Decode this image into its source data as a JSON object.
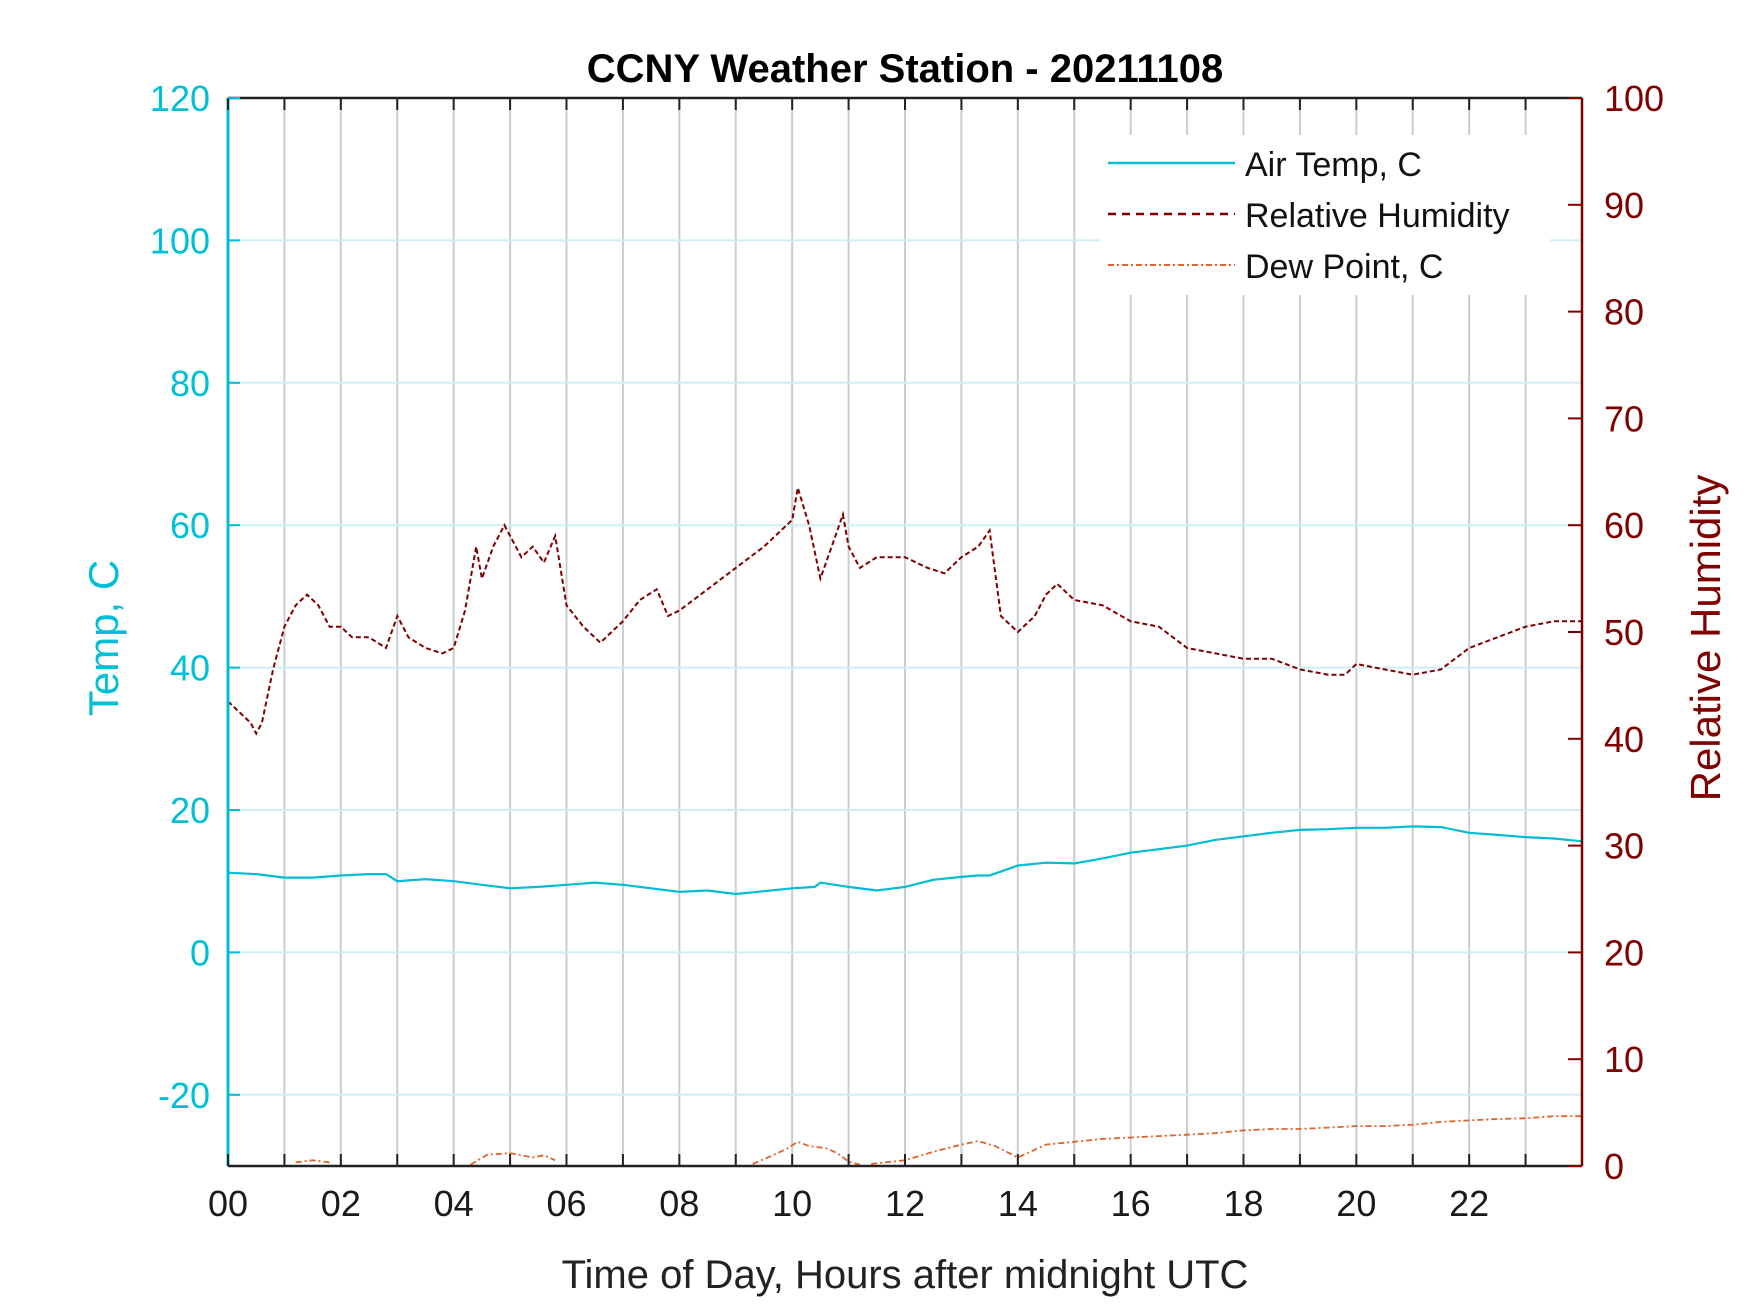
{
  "chart_data": {
    "type": "line",
    "title": "CCNY Weather Station - 20211108",
    "xlabel": "Time of Day, Hours after midnight UTC",
    "ylabel_left": "Temp, C",
    "ylabel_right": "Relative Humidity",
    "xlim": [
      0,
      24
    ],
    "ylim_left": [
      -30,
      120
    ],
    "ylim_right": [
      0,
      100
    ],
    "x_ticks": [
      0,
      2,
      4,
      6,
      8,
      10,
      12,
      14,
      16,
      18,
      20,
      22
    ],
    "x_tick_labels": [
      "00",
      "02",
      "04",
      "06",
      "08",
      "10",
      "12",
      "14",
      "16",
      "18",
      "20",
      "22"
    ],
    "y_left_ticks": [
      -20,
      0,
      20,
      40,
      60,
      80,
      100,
      120
    ],
    "y_left_tick_labels": [
      "-20",
      "0",
      "20",
      "40",
      "60",
      "80",
      "100",
      "120"
    ],
    "y_right_ticks": [
      0,
      10,
      20,
      30,
      40,
      50,
      60,
      70,
      80,
      90,
      100
    ],
    "y_right_tick_labels": [
      "0",
      "10",
      "20",
      "30",
      "40",
      "50",
      "60",
      "70",
      "80",
      "90",
      "100"
    ],
    "grid": true,
    "legend_position": "top-right",
    "colors": {
      "temp": "#00bcd4",
      "rh": "#800000",
      "dew": "#e0622a",
      "grid_v": "#c8cdd2",
      "grid_h": "#cfeef3"
    },
    "series": [
      {
        "name": "Air Temp, C",
        "axis": "left",
        "style": "solid",
        "x": [
          0,
          0.5,
          1.0,
          1.5,
          2.0,
          2.5,
          2.8,
          3.0,
          3.5,
          4.0,
          4.5,
          5.0,
          5.5,
          6.0,
          6.5,
          7.0,
          7.5,
          8.0,
          8.5,
          9.0,
          9.5,
          10.0,
          10.4,
          10.5,
          11.0,
          11.5,
          12.0,
          12.5,
          13.0,
          13.3,
          13.5,
          14.0,
          14.5,
          15.0,
          15.5,
          16.0,
          16.5,
          17.0,
          17.5,
          18.0,
          18.5,
          19.0,
          19.5,
          20.0,
          20.5,
          21.0,
          21.5,
          22.0,
          22.5,
          23.0,
          23.5,
          24.0
        ],
        "values": [
          11.2,
          11.0,
          10.5,
          10.5,
          10.8,
          11.0,
          11.0,
          10.0,
          10.3,
          10.0,
          9.5,
          9.0,
          9.2,
          9.5,
          9.8,
          9.5,
          9.0,
          8.5,
          8.7,
          8.2,
          8.6,
          9.0,
          9.2,
          9.8,
          9.2,
          8.7,
          9.2,
          10.2,
          10.6,
          10.8,
          10.8,
          12.2,
          12.6,
          12.5,
          13.2,
          14.0,
          14.5,
          15.0,
          15.8,
          16.3,
          16.8,
          17.2,
          17.3,
          17.5,
          17.5,
          17.7,
          17.6,
          16.8,
          16.5,
          16.2,
          16.0,
          15.6
        ]
      },
      {
        "name": "Relative Humidity",
        "axis": "right",
        "style": "dashed",
        "x": [
          0,
          0.2,
          0.4,
          0.5,
          0.6,
          0.8,
          1.0,
          1.2,
          1.4,
          1.6,
          1.8,
          2.0,
          2.2,
          2.5,
          2.8,
          3.0,
          3.2,
          3.5,
          3.8,
          4.0,
          4.2,
          4.4,
          4.5,
          4.7,
          4.9,
          5.0,
          5.2,
          5.4,
          5.6,
          5.8,
          6.0,
          6.3,
          6.6,
          6.8,
          7.0,
          7.3,
          7.6,
          7.8,
          8.0,
          8.5,
          9.0,
          9.5,
          10.0,
          10.1,
          10.3,
          10.5,
          10.7,
          10.9,
          11.0,
          11.2,
          11.5,
          12.0,
          12.4,
          12.7,
          13.0,
          13.3,
          13.5,
          13.7,
          14.0,
          14.3,
          14.5,
          14.7,
          15.0,
          15.5,
          16.0,
          16.5,
          17.0,
          17.5,
          18.0,
          18.5,
          19.0,
          19.5,
          19.8,
          20.0,
          20.5,
          21.0,
          21.5,
          22.0,
          22.5,
          23.0,
          23.5,
          24.0
        ],
        "values": [
          43.5,
          42.5,
          41.5,
          40.5,
          41.5,
          46.5,
          50.5,
          52.5,
          53.5,
          52.5,
          50.5,
          50.5,
          49.5,
          49.5,
          48.5,
          51.5,
          49.5,
          48.5,
          48.0,
          48.5,
          52.0,
          58.0,
          55.0,
          58.0,
          60.0,
          59.0,
          57.0,
          58.0,
          56.5,
          59.0,
          52.5,
          50.5,
          49.0,
          50.0,
          51.0,
          53.0,
          54.0,
          51.5,
          52.0,
          54.0,
          56.0,
          58.0,
          60.5,
          63.5,
          60.0,
          55.0,
          58.0,
          61.0,
          58.0,
          56.0,
          57.0,
          57.0,
          56.0,
          55.5,
          57.0,
          58.0,
          59.5,
          51.5,
          50.0,
          51.5,
          53.5,
          54.5,
          53.0,
          52.5,
          51.0,
          50.5,
          48.5,
          48.0,
          47.5,
          47.5,
          46.5,
          46.0,
          46.0,
          47.0,
          46.5,
          46.0,
          46.5,
          48.5,
          49.5,
          50.5,
          51.0,
          51.0
        ]
      },
      {
        "name": "Dew Point, C",
        "axis": "left",
        "style": "dash-dot",
        "segments": [
          {
            "x": [
              1.2,
              1.5,
              1.8
            ],
            "values": [
              -29.5,
              -29.2,
              -29.5
            ]
          },
          {
            "x": [
              4.3,
              4.6,
              5.0,
              5.4,
              5.6,
              5.8
            ],
            "values": [
              -29.8,
              -28.4,
              -28.2,
              -28.8,
              -28.5,
              -29.2
            ]
          },
          {
            "x": [
              9.3,
              9.6,
              9.9,
              10.1,
              10.3,
              10.6,
              10.8,
              11.0,
              11.2
            ],
            "values": [
              -29.7,
              -28.7,
              -27.6,
              -26.6,
              -27.2,
              -27.5,
              -28.2,
              -29.4,
              -29.8
            ]
          },
          {
            "x": [
              11.4,
              12.0,
              12.5,
              13.0,
              13.3,
              13.6,
              14.0,
              14.5,
              15.0,
              15.5,
              16.0,
              16.5,
              17.0,
              17.5,
              18.0,
              18.5,
              19.0,
              19.5,
              20.0,
              20.5,
              21.0,
              21.5,
              22.0,
              22.5,
              23.0,
              23.5,
              24.0
            ],
            "values": [
              -29.7,
              -29.2,
              -28.0,
              -27.0,
              -26.5,
              -27.2,
              -28.8,
              -27.0,
              -26.6,
              -26.2,
              -26.0,
              -25.8,
              -25.6,
              -25.4,
              -25.0,
              -24.8,
              -24.8,
              -24.6,
              -24.4,
              -24.4,
              -24.2,
              -23.8,
              -23.6,
              -23.4,
              -23.3,
              -23.0,
              -23.0
            ]
          }
        ]
      }
    ]
  }
}
